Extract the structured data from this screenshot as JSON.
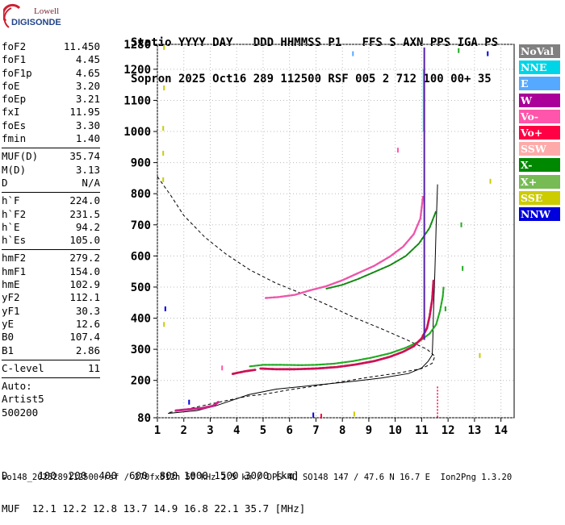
{
  "logo": {
    "line1": "Lowell",
    "line2": "DIGISONDE"
  },
  "header": {
    "line1": "Statio YYYY DAY   DDD HHMMSS P1   FFS S AXN PPS IGA PS",
    "line2": "Sopron 2025 Oct16 289 112500 RSF 005 2 712 100 00+ 35"
  },
  "params": {
    "g1": [
      {
        "label": "foF2",
        "value": "11.450"
      },
      {
        "label": "foF1",
        "value": "4.45"
      },
      {
        "label": "foF1p",
        "value": "4.65"
      },
      {
        "label": "foE",
        "value": "3.20"
      },
      {
        "label": "foEp",
        "value": "3.21"
      },
      {
        "label": "fxI",
        "value": "11.95"
      },
      {
        "label": "foEs",
        "value": "3.30"
      },
      {
        "label": "fmin",
        "value": "1.40"
      }
    ],
    "g2": [
      {
        "label": "MUF(D)",
        "value": "35.74"
      },
      {
        "label": "M(D)",
        "value": "3.13"
      },
      {
        "label": "D",
        "value": "N/A"
      }
    ],
    "g3": [
      {
        "label": "h`F",
        "value": "224.0"
      },
      {
        "label": "h`F2",
        "value": "231.5"
      },
      {
        "label": "h`E",
        "value": "94.2"
      },
      {
        "label": "h`Es",
        "value": "105.0"
      }
    ],
    "g4": [
      {
        "label": "hmF2",
        "value": "279.2"
      },
      {
        "label": "hmF1",
        "value": "154.0"
      },
      {
        "label": "hmE",
        "value": "102.9"
      },
      {
        "label": "yF2",
        "value": "112.1"
      },
      {
        "label": "yF1",
        "value": "30.3"
      },
      {
        "label": "yE",
        "value": "12.6"
      },
      {
        "label": "B0",
        "value": "107.4"
      },
      {
        "label": "B1",
        "value": "2.86"
      }
    ],
    "g5": [
      {
        "label": "C-level",
        "value": "11"
      }
    ],
    "auto_label": "Auto:",
    "artist": "Artist5",
    "code": "500200"
  },
  "legend": [
    {
      "label": "NoVal",
      "color": "#808080"
    },
    {
      "label": "NNE",
      "color": "#00d5e8"
    },
    {
      "label": "E",
      "color": "#55aaff"
    },
    {
      "label": "W",
      "color": "#aa0099"
    },
    {
      "label": "Vo-",
      "color": "#ff55aa"
    },
    {
      "label": "Vo+",
      "color": "#ff0044"
    },
    {
      "label": "SSW",
      "color": "#ffaaaa"
    },
    {
      "label": "X-",
      "color": "#008800"
    },
    {
      "label": "X+",
      "color": "#77bb55"
    },
    {
      "label": "SSE",
      "color": "#cccc00"
    },
    {
      "label": "NNW",
      "color": "#0000dd"
    }
  ],
  "chart_data": {
    "type": "scatter",
    "xlim": [
      1,
      14.5
    ],
    "ylim": [
      80,
      1280
    ],
    "x_ticks": [
      1,
      2,
      3,
      4,
      5,
      6,
      7,
      8,
      9,
      10,
      11,
      12,
      13,
      14
    ],
    "y_ticks": [
      80,
      200,
      300,
      400,
      500,
      600,
      700,
      800,
      900,
      1000,
      1100,
      1200,
      1280
    ],
    "grid": true,
    "traces": {
      "o_f2_low": [
        [
          4.9,
          238
        ],
        [
          5.5,
          236
        ],
        [
          6.2,
          236
        ],
        [
          7,
          238
        ],
        [
          7.8,
          243
        ],
        [
          8.5,
          251
        ],
        [
          9.2,
          262
        ],
        [
          9.8,
          276
        ],
        [
          10.3,
          292
        ],
        [
          10.7,
          310
        ],
        [
          11.0,
          335
        ],
        [
          11.2,
          368
        ],
        [
          11.3,
          405
        ],
        [
          11.4,
          460
        ],
        [
          11.45,
          520
        ]
      ],
      "o_f1": [
        [
          3.85,
          221
        ],
        [
          4.3,
          229
        ],
        [
          4.7,
          234
        ]
      ],
      "x_f2_low": [
        [
          4.5,
          245
        ],
        [
          5,
          250
        ],
        [
          5.7,
          250
        ],
        [
          6.4,
          249
        ],
        [
          7,
          250
        ],
        [
          7.7,
          254
        ],
        [
          8.4,
          262
        ],
        [
          9.1,
          273
        ],
        [
          9.8,
          287
        ],
        [
          10.4,
          305
        ],
        [
          10.9,
          325
        ],
        [
          11.3,
          350
        ],
        [
          11.55,
          380
        ],
        [
          11.7,
          425
        ],
        [
          11.8,
          470
        ],
        [
          11.83,
          500
        ]
      ],
      "o_multi": [
        [
          5.1,
          465
        ],
        [
          5.6,
          468
        ],
        [
          6.2,
          475
        ],
        [
          6.8,
          490
        ],
        [
          7.4,
          503
        ],
        [
          8,
          522
        ],
        [
          8.6,
          545
        ],
        [
          9.2,
          568
        ],
        [
          9.8,
          598
        ],
        [
          10.3,
          630
        ],
        [
          10.7,
          670
        ],
        [
          10.95,
          720
        ],
        [
          11.05,
          790
        ]
      ],
      "x_multi": [
        [
          7.4,
          495
        ],
        [
          8,
          507
        ],
        [
          8.6,
          526
        ],
        [
          9.2,
          548
        ],
        [
          9.8,
          570
        ],
        [
          10.4,
          600
        ],
        [
          10.9,
          640
        ],
        [
          11.3,
          690
        ],
        [
          11.55,
          745
        ]
      ],
      "e_layer": [
        [
          1.7,
          103
        ],
        [
          2.2,
          107
        ],
        [
          2.7,
          111
        ],
        [
          3.1,
          118
        ],
        [
          3.3,
          130
        ]
      ],
      "profile_solid": [
        [
          1.4,
          94
        ],
        [
          2.5,
          103
        ],
        [
          3.2,
          118
        ],
        [
          4.45,
          154
        ],
        [
          5.5,
          172
        ],
        [
          7,
          185
        ],
        [
          8.5,
          198
        ],
        [
          9.5,
          208
        ],
        [
          10.5,
          222
        ],
        [
          11.0,
          240
        ],
        [
          11.25,
          262
        ],
        [
          11.4,
          282
        ],
        [
          11.42,
          330
        ],
        [
          11.45,
          420
        ],
        [
          11.5,
          550
        ],
        [
          11.55,
          700
        ],
        [
          11.6,
          830
        ]
      ],
      "model_dashed": [
        [
          1,
          855
        ],
        [
          1.5,
          795
        ],
        [
          2,
          730
        ],
        [
          2.8,
          660
        ],
        [
          3.6,
          606
        ],
        [
          4.5,
          555
        ],
        [
          5.5,
          512
        ],
        [
          6.5,
          478
        ],
        [
          7.5,
          440
        ],
        [
          8.5,
          400
        ],
        [
          9.5,
          365
        ],
        [
          10.5,
          328
        ],
        [
          11.2,
          300
        ],
        [
          11.5,
          278
        ],
        [
          11.4,
          255
        ],
        [
          11,
          238
        ],
        [
          10.2,
          225
        ],
        [
          9,
          210
        ],
        [
          8,
          196
        ],
        [
          7,
          182
        ],
        [
          6,
          170
        ],
        [
          5,
          155
        ],
        [
          4.45,
          150
        ],
        [
          3.6,
          135
        ],
        [
          3,
          124
        ],
        [
          2.5,
          115
        ],
        [
          2,
          106
        ],
        [
          1.4,
          96
        ]
      ]
    }
  },
  "bottom": {
    "d_line": "D     100  200  400  600  800 1000 1500 3000 [km]",
    "muf_line": "MUF  12.1 12.2 12.8 13.7 14.9 16.8 22.1 35.7 [MHz]"
  },
  "footer": "so148_2025289112500.rsf / 270fx512h 50 kHz 2.5 km / DPS-4D SO148 147 / 47.6 N 16.7 E  Ion2Png 1.3.20"
}
